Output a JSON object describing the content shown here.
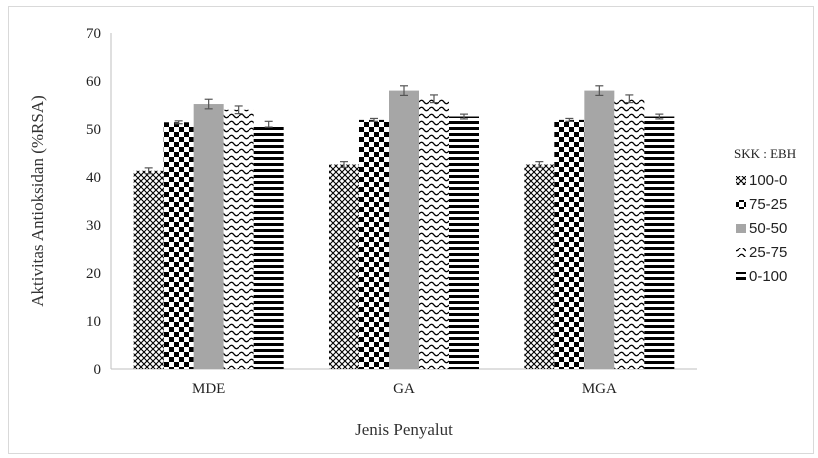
{
  "chart_data": {
    "type": "bar",
    "categories": [
      "MDE",
      "GA",
      "MGA"
    ],
    "series": [
      {
        "name": "100-0",
        "pattern": "crosshatch",
        "values": [
          41.3,
          42.6,
          42.6
        ],
        "errors": [
          0.6,
          0.6,
          0.6
        ]
      },
      {
        "name": "75-25",
        "pattern": "checker",
        "values": [
          51.4,
          51.9,
          51.9
        ],
        "errors": [
          0.3,
          0.3,
          0.3
        ]
      },
      {
        "name": "50-50",
        "pattern": "solid-gray",
        "values": [
          55.2,
          58.0,
          58.0
        ],
        "errors": [
          1.0,
          1.0,
          1.0
        ]
      },
      {
        "name": "25-75",
        "pattern": "wave",
        "values": [
          54.0,
          56.3,
          56.3
        ],
        "errors": [
          0.8,
          0.8,
          0.8
        ]
      },
      {
        "name": "0-100",
        "pattern": "horizontal-stripes",
        "values": [
          51.0,
          52.6,
          52.6
        ],
        "errors": [
          0.6,
          0.5,
          0.5
        ]
      }
    ],
    "title": "",
    "xlabel": "Jenis Penyalut",
    "ylabel": "Aktivitas Antioksidan (%RSA)",
    "ylim": [
      0,
      70
    ],
    "yticks": [
      0,
      10,
      20,
      30,
      40,
      50,
      60,
      70
    ],
    "legend_title": "SKK : EBH",
    "legend_position": "right",
    "grid": false,
    "colors": {
      "bar_dark": "#000000",
      "bar_gray": "#a6a6a6",
      "axis": "#bfbfbf",
      "error_bar": "#555555"
    }
  }
}
